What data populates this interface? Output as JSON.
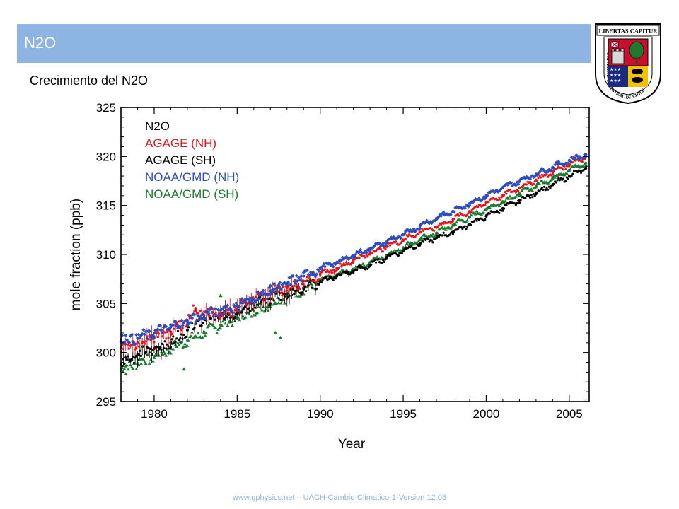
{
  "slide": {
    "title": "N2O",
    "subtitle": "Crecimiento del N2O",
    "footer": "www.gphysics.net – UACH-Cambio-Climatico-1-Version 12.08"
  },
  "seal": {
    "top_text": "LIBERTAS CAPITUR",
    "ring_text": "UNIVERSIDAD AUSTRAL DE CHILE"
  },
  "colors": {
    "title_bar": "#8eb4e3",
    "agage_nh": "#e8141c",
    "agage_sh": "#000000",
    "noaa_nh": "#2b4dbf",
    "noaa_sh": "#1a7a2e"
  },
  "chart_data": {
    "type": "scatter",
    "legend_title": "N2O",
    "legend_placement": "top-left",
    "xlabel": "Year",
    "ylabel": "mole fraction (ppb)",
    "xlim": [
      1978,
      2006.2
    ],
    "ylim": [
      295,
      325
    ],
    "x_ticks": [
      1980,
      1985,
      1990,
      1995,
      2000,
      2005
    ],
    "y_ticks": [
      295,
      300,
      305,
      310,
      315,
      320,
      325
    ],
    "series": [
      {
        "name": "AGAGE (NH)",
        "color": "#e8141c",
        "x": [
          1978.0,
          1979.0,
          1980.0,
          1981.0,
          1982.0,
          1982.5,
          1983.0,
          1984.0,
          1985.0,
          1986.0,
          1987.0,
          1988.0,
          1989.0,
          1990.0,
          1991.0,
          1992.0,
          1993.0,
          1994.0,
          1995.0,
          1996.0,
          1997.0,
          1998.0,
          1999.0,
          2000.0,
          2001.0,
          2002.0,
          2003.0,
          2004.0,
          2005.0,
          2006.0
        ],
        "y": [
          300.5,
          301.0,
          301.6,
          302.1,
          303.3,
          304.5,
          303.8,
          304.0,
          304.5,
          305.4,
          306.0,
          306.6,
          307.3,
          308.0,
          308.6,
          309.4,
          310.1,
          310.8,
          311.5,
          312.3,
          312.8,
          313.6,
          314.4,
          315.3,
          316.0,
          316.8,
          317.6,
          318.4,
          319.2,
          320.0
        ]
      },
      {
        "name": "AGAGE (SH)",
        "color": "#000000",
        "x": [
          1978.0,
          1979.0,
          1980.0,
          1981.0,
          1982.0,
          1983.0,
          1984.0,
          1985.0,
          1986.0,
          1987.0,
          1988.0,
          1989.0,
          1990.0,
          1991.0,
          1992.0,
          1993.0,
          1994.0,
          1995.0,
          1996.0,
          1997.0,
          1998.0,
          1999.0,
          2000.0,
          2001.0,
          2002.0,
          2003.0,
          2004.0,
          2005.0,
          2006.0
        ],
        "y": [
          298.8,
          299.8,
          300.4,
          301.0,
          302.3,
          303.4,
          303.7,
          304.1,
          304.9,
          305.5,
          306.0,
          306.6,
          307.2,
          307.8,
          308.3,
          308.9,
          309.7,
          310.4,
          311.1,
          311.7,
          312.3,
          313.1,
          313.9,
          314.7,
          315.5,
          316.3,
          317.1,
          318.0,
          318.8
        ]
      },
      {
        "name": "NOAA/GMD (NH)",
        "color": "#2b4dbf",
        "x": [
          1978.0,
          1979.0,
          1980.0,
          1981.0,
          1982.0,
          1983.0,
          1984.0,
          1985.0,
          1986.0,
          1987.0,
          1988.0,
          1989.0,
          1990.0,
          1991.0,
          1992.0,
          1993.0,
          1994.0,
          1995.0,
          1996.0,
          1997.0,
          1998.0,
          1999.0,
          2000.0,
          2001.0,
          2002.0,
          2003.0,
          2004.0,
          2005.0,
          2006.0
        ],
        "y": [
          301.3,
          301.5,
          302.0,
          302.6,
          303.2,
          303.8,
          304.3,
          304.8,
          305.5,
          306.3,
          307.0,
          307.8,
          308.6,
          309.2,
          309.9,
          310.6,
          311.3,
          312.0,
          312.9,
          313.7,
          314.4,
          315.2,
          316.0,
          316.8,
          317.5,
          318.2,
          318.9,
          319.6,
          320.2
        ]
      },
      {
        "name": "NOAA/GMD (SH)",
        "color": "#1a7a2e",
        "x": [
          1978.0,
          1979.0,
          1980.0,
          1981.0,
          1982.0,
          1983.0,
          1984.0,
          1985.0,
          1986.0,
          1987.0,
          1988.0,
          1989.0,
          1990.0,
          1991.0,
          1992.0,
          1993.0,
          1994.0,
          1995.0,
          1996.0,
          1997.0,
          1998.0,
          1999.0,
          2000.0,
          2001.0,
          2002.0,
          2003.0,
          2004.0,
          2005.0,
          2006.0
        ],
        "y": [
          298.3,
          298.9,
          299.6,
          300.4,
          301.2,
          302.0,
          302.8,
          303.5,
          304.2,
          305.0,
          305.8,
          306.5,
          307.3,
          307.9,
          308.5,
          309.2,
          309.9,
          310.7,
          311.5,
          312.2,
          313.0,
          313.8,
          314.6,
          315.4,
          316.2,
          317.0,
          317.8,
          318.6,
          319.3
        ]
      }
    ],
    "outliers": [
      {
        "series": "NOAA/GMD (SH)",
        "x": 1984.0,
        "y": 305.8
      },
      {
        "series": "NOAA/GMD (SH)",
        "x": 1987.3,
        "y": 302.0
      },
      {
        "series": "NOAA/GMD (SH)",
        "x": 1987.6,
        "y": 301.5
      },
      {
        "series": "NOAA/GMD (SH)",
        "x": 1981.8,
        "y": 298.3
      },
      {
        "series": "NOAA/GMD (SH)",
        "x": 1978.3,
        "y": 297.8
      },
      {
        "series": "NOAA/GMD (NH)",
        "x": 1987.0,
        "y": 306.8
      }
    ]
  }
}
